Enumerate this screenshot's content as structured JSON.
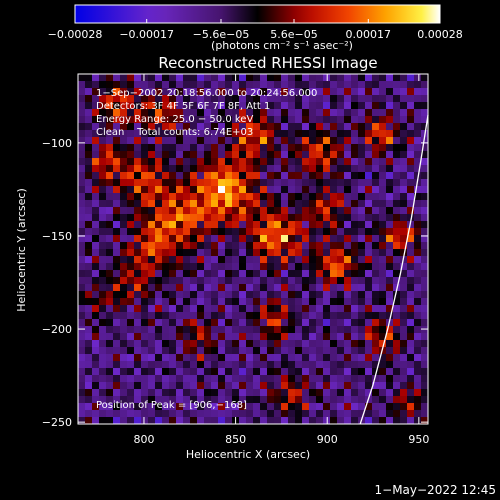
{
  "chart_data": {
    "type": "heatmap",
    "title": "Reconstructed RHESSI Image",
    "xlabel": "Heliocentric X (arcsec)",
    "ylabel": "Heliocentric Y (arcsec)",
    "xlim": [
      764,
      955
    ],
    "ylim": [
      -251,
      -63
    ],
    "x_ticks": [
      800,
      850,
      900,
      950
    ],
    "x_tick_labels": [
      "800",
      "850",
      "900",
      "950"
    ],
    "y_ticks": [
      -100,
      -150,
      -200,
      -250
    ],
    "y_tick_labels": [
      "−100",
      "−150",
      "−200",
      "−250"
    ],
    "colorbar": {
      "min": -0.00028,
      "max": 0.00028,
      "tick_values": [
        -0.00028,
        -0.00017,
        -5.6e-05,
        5.6e-05,
        0.00017,
        0.00028
      ],
      "tick_labels": [
        "−0.00028",
        "−0.00017",
        "−5.6e−05",
        "5.6e−05",
        "0.00017",
        "0.00028"
      ],
      "units_label": "(photons cm⁻² s⁻¹ asec⁻²)"
    },
    "annotations": [
      "1−Sep−2002 20:18:56.000 to 20:24:56.000",
      "Detectors: 3F 4F 5F 6F 7F 8F, Att 1",
      "Energy Range: 25.0 − 50.0 keV",
      "Clean    Total counts: 6.74E+03"
    ],
    "peak_label": "Position of Peak = [906,−168]",
    "peak": [
      906,
      -168
    ],
    "limb": "white solar limb arc near right edge",
    "sources": [
      {
        "x": 845,
        "y": -125,
        "amp": 1.0,
        "s": 12
      },
      {
        "x": 872,
        "y": -150,
        "amp": 0.95,
        "s": 10
      },
      {
        "x": 820,
        "y": -140,
        "amp": 0.75,
        "s": 12
      },
      {
        "x": 800,
        "y": -120,
        "amp": 0.65,
        "s": 9
      },
      {
        "x": 805,
        "y": -155,
        "amp": 0.6,
        "s": 9
      },
      {
        "x": 860,
        "y": -95,
        "amp": 0.7,
        "s": 9
      },
      {
        "x": 895,
        "y": -105,
        "amp": 0.7,
        "s": 9
      },
      {
        "x": 780,
        "y": -110,
        "amp": 0.6,
        "s": 8
      },
      {
        "x": 785,
        "y": -80,
        "amp": 0.75,
        "s": 8
      },
      {
        "x": 810,
        "y": -85,
        "amp": 0.65,
        "s": 8
      },
      {
        "x": 795,
        "y": -175,
        "amp": 0.55,
        "s": 9
      },
      {
        "x": 905,
        "y": -165,
        "amp": 0.8,
        "s": 8
      },
      {
        "x": 900,
        "y": -135,
        "amp": 0.6,
        "s": 8
      },
      {
        "x": 930,
        "y": -95,
        "amp": 0.7,
        "s": 7
      },
      {
        "x": 940,
        "y": -150,
        "amp": 0.75,
        "s": 7
      },
      {
        "x": 870,
        "y": -195,
        "amp": 0.6,
        "s": 8
      },
      {
        "x": 830,
        "y": -205,
        "amp": 0.45,
        "s": 8
      },
      {
        "x": 930,
        "y": -205,
        "amp": 0.55,
        "s": 8
      },
      {
        "x": 880,
        "y": -235,
        "amp": 0.5,
        "s": 8
      },
      {
        "x": 945,
        "y": -240,
        "amp": 0.45,
        "s": 7
      },
      {
        "x": 775,
        "y": -185,
        "amp": 0.35,
        "s": 7
      }
    ]
  },
  "footer": {
    "timestamp": "1−May−2022 12:45"
  },
  "colors": {
    "background": "#000000",
    "text": "#ffffff"
  }
}
